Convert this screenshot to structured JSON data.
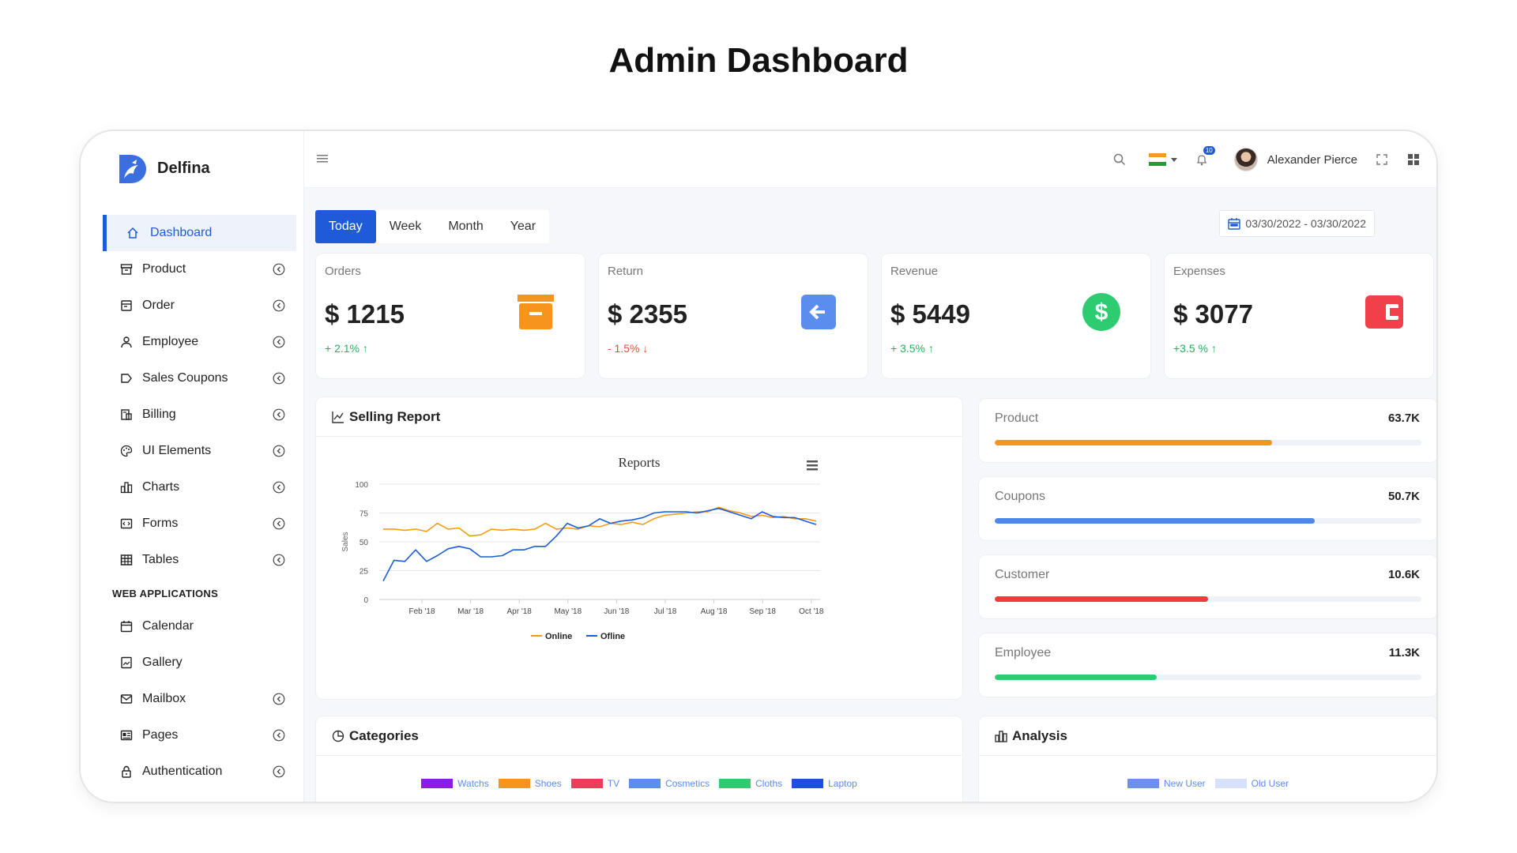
{
  "page_heading": "Admin Dashboard",
  "brand": {
    "name": "Delfina",
    "color": "#3b6fe0"
  },
  "sidebar": {
    "items": [
      {
        "label": "Dashboard",
        "icon": "home-icon",
        "active": true,
        "expand": false
      },
      {
        "label": "Product",
        "icon": "archive-icon",
        "expand": true
      },
      {
        "label": "Order",
        "icon": "order-icon",
        "expand": true
      },
      {
        "label": "Employee",
        "icon": "user-icon",
        "expand": true
      },
      {
        "label": "Sales Coupons",
        "icon": "tag-icon",
        "expand": true
      },
      {
        "label": "Billing",
        "icon": "billing-icon",
        "expand": true
      },
      {
        "label": "UI Elements",
        "icon": "palette-icon",
        "expand": true
      },
      {
        "label": "Charts",
        "icon": "chart-icon",
        "expand": true
      },
      {
        "label": "Forms",
        "icon": "form-icon",
        "expand": true
      },
      {
        "label": "Tables",
        "icon": "table-icon",
        "expand": true
      }
    ],
    "section_title": "WEB APPLICATIONS",
    "web_items": [
      {
        "label": "Calendar",
        "icon": "calendar-icon",
        "expand": false
      },
      {
        "label": "Gallery",
        "icon": "gallery-icon",
        "expand": false
      },
      {
        "label": "Mailbox",
        "icon": "mail-icon",
        "expand": true
      },
      {
        "label": "Pages",
        "icon": "pages-icon",
        "expand": true
      },
      {
        "label": "Authentication",
        "icon": "lock-icon",
        "expand": true
      }
    ]
  },
  "topbar": {
    "user_name": "Alexander Pierce",
    "notification_count": "10"
  },
  "period_tabs": [
    "Today",
    "Week",
    "Month",
    "Year"
  ],
  "active_period": "Today",
  "date_range": "03/30/2022 - 03/30/2022",
  "stats": [
    {
      "label": "Orders",
      "value": "$ 1215",
      "change": "+ 2.1%",
      "arrow": "↑",
      "direction": "up",
      "icon": "archive-box-icon",
      "color": "#f7941d"
    },
    {
      "label": "Return",
      "value": "$ 2355",
      "change": "- 1.5%",
      "arrow": "↓",
      "direction": "down",
      "icon": "arrow-left-icon",
      "color": "#5b8def"
    },
    {
      "label": "Revenue",
      "value": "$ 5449",
      "change": "+ 3.5%",
      "arrow": "↑",
      "direction": "up",
      "icon": "dollar-icon",
      "color": "#2ecc71"
    },
    {
      "label": "Expenses",
      "value": "$ 3077",
      "change": "+3.5 %",
      "arrow": "↑",
      "direction": "up",
      "icon": "wallet-icon",
      "color": "#f2404a"
    }
  ],
  "selling_report": {
    "title": "Selling Report",
    "chart_data": {
      "type": "line",
      "title": "Reports",
      "xlabel": "",
      "ylabel": "Sales",
      "ylim": [
        0,
        100
      ],
      "yticks": [
        0,
        25,
        50,
        75,
        100
      ],
      "xticks": [
        "Feb '18",
        "Mar '18",
        "Apr '18",
        "May '18",
        "Jun '18",
        "Jul '18",
        "Aug '18",
        "Sep '18",
        "Oct '18"
      ],
      "legend_position": "bottom",
      "grid": true,
      "series": [
        {
          "name": "Online",
          "color": "#f39c12",
          "values": [
            61,
            61,
            60,
            61,
            59,
            66,
            61,
            62,
            55,
            56,
            61,
            60,
            61,
            60,
            61,
            66,
            61,
            62,
            61,
            64,
            63,
            66,
            65,
            67,
            65,
            70,
            73,
            74,
            75,
            76,
            76,
            80,
            77,
            75,
            72,
            73,
            71,
            72,
            70,
            70,
            68
          ]
        },
        {
          "name": "Ofline",
          "color": "#1f5bd9",
          "values": [
            16,
            34,
            33,
            43,
            33,
            38,
            44,
            46,
            44,
            37,
            37,
            38,
            43,
            43,
            46,
            46,
            55,
            66,
            62,
            64,
            70,
            66,
            68,
            69,
            71,
            75,
            76,
            76,
            76,
            75,
            77,
            79,
            76,
            73,
            70,
            76,
            72,
            71,
            71,
            68,
            65
          ]
        }
      ]
    }
  },
  "progress": [
    {
      "label": "Product",
      "value": "63.7K",
      "fraction": 0.65,
      "color": "#f7941d"
    },
    {
      "label": "Coupons",
      "value": "50.7K",
      "fraction": 0.75,
      "color": "#4f86ec"
    },
    {
      "label": "Customer",
      "value": "10.6K",
      "fraction": 0.5,
      "color": "#ef3b3b"
    },
    {
      "label": "Employee",
      "value": "11.3K",
      "fraction": 0.38,
      "color": "#2ecc71"
    }
  ],
  "categories": {
    "title": "Categories",
    "legend": [
      {
        "name": "Watchs",
        "color": "#8a1ee8"
      },
      {
        "name": "Shoes",
        "color": "#f7941d"
      },
      {
        "name": "TV",
        "color": "#ef3b5a"
      },
      {
        "name": "Cosmetics",
        "color": "#5b8def"
      },
      {
        "name": "Cloths",
        "color": "#2ecc71"
      },
      {
        "name": "Laptop",
        "color": "#1f4fe0"
      }
    ]
  },
  "analysis": {
    "title": "Analysis",
    "legend": [
      {
        "name": "New User",
        "color": "#6d8ff0"
      },
      {
        "name": "Old User",
        "color": "#d6e2fb"
      }
    ]
  }
}
